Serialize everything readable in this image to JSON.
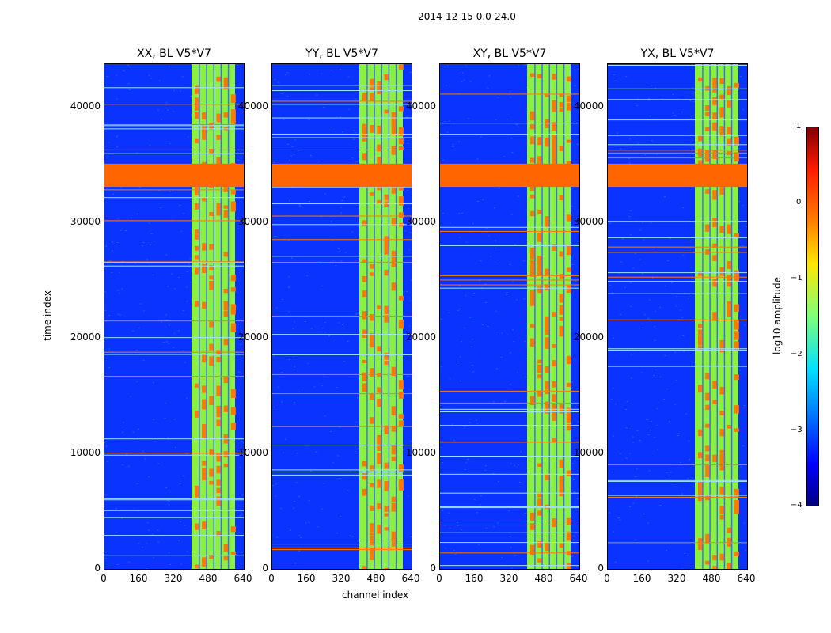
{
  "chart_data": {
    "type": "heatmap",
    "suptitle": "2014-12-15 0.0-24.0",
    "panels": [
      {
        "title": "XX, BL V5*V7"
      },
      {
        "title": "YY, BL V5*V7"
      },
      {
        "title": "XY, BL V5*V7"
      },
      {
        "title": "YX, BL V5*V7"
      }
    ],
    "xlabel": "channel index",
    "ylabel": "time index",
    "xticks": [
      "0",
      "160",
      "320",
      "480",
      "640"
    ],
    "yticks": [
      "0",
      "10000",
      "20000",
      "30000",
      "40000"
    ],
    "xlim": [
      0,
      640
    ],
    "ylim": [
      0,
      43600
    ],
    "colorbar": {
      "label": "log10 amplitude",
      "ticks": [
        "1",
        "0",
        "−1",
        "−2",
        "−3",
        "−4"
      ],
      "range": [
        -4,
        1
      ],
      "colormap": "jet"
    },
    "flagged_band": {
      "time_start": 33000,
      "time_end": 35000,
      "color": "#ff6600"
    },
    "rfi_channels": [
      400,
      600
    ],
    "colors": {
      "background": "#0a33ff",
      "noise": "#1e66ff",
      "rfi_band": "#8cf040",
      "hot": "#ff7a00",
      "flag": "#ff6600"
    }
  }
}
